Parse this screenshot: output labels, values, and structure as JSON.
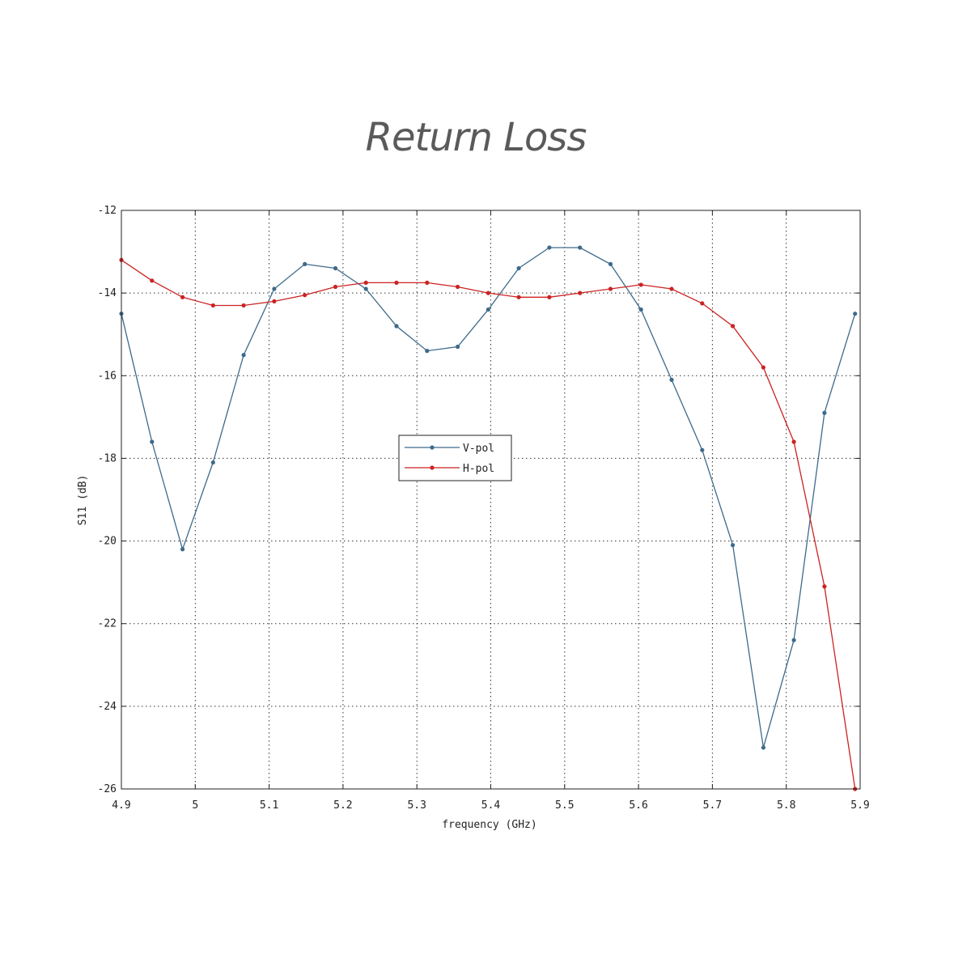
{
  "chart_data": {
    "type": "line",
    "title": "Return Loss",
    "xlabel": "frequency (GHz)",
    "ylabel": "S11 (dB)",
    "xlim": [
      4.9,
      5.9
    ],
    "ylim": [
      -26,
      -12
    ],
    "xticks": [
      4.9,
      5.0,
      5.1,
      5.2,
      5.3,
      5.4,
      5.5,
      5.6,
      5.7,
      5.8,
      5.9
    ],
    "xtick_labels": [
      "4.9",
      "5",
      "5.1",
      "5.2",
      "5.3",
      "5.4",
      "5.5",
      "5.6",
      "5.7",
      "5.8",
      "5.9"
    ],
    "yticks": [
      -12,
      -14,
      -16,
      -18,
      -20,
      -22,
      -24,
      -26
    ],
    "ytick_labels": [
      "-12",
      "-14",
      "-16",
      "-18",
      "-20",
      "-22",
      "-24",
      "-26"
    ],
    "grid": true,
    "legend": "center-left",
    "series": [
      {
        "name": "V-pol",
        "color": "#3d6a8a",
        "x": [
          4.9,
          4.9414,
          4.9828,
          5.0241,
          5.0655,
          5.1069,
          5.1483,
          5.1897,
          5.231,
          5.2724,
          5.3138,
          5.3552,
          5.3966,
          5.4379,
          5.4793,
          5.5207,
          5.5621,
          5.6034,
          5.6448,
          5.6862,
          5.7276,
          5.769,
          5.8103,
          5.8517,
          5.8931
        ],
        "y": [
          -14.5,
          -17.6,
          -20.2,
          -18.1,
          -15.5,
          -13.9,
          -13.3,
          -13.4,
          -13.9,
          -14.8,
          -15.4,
          -15.3,
          -14.4,
          -13.4,
          -12.9,
          -12.9,
          -13.3,
          -14.4,
          -16.1,
          -17.8,
          -20.1,
          -25.0,
          -22.4,
          -16.9,
          -14.5
        ]
      },
      {
        "name": "H-pol",
        "color": "#cc2222",
        "x": [
          4.9,
          4.9414,
          4.9828,
          5.0241,
          5.0655,
          5.1069,
          5.1483,
          5.1897,
          5.231,
          5.2724,
          5.3138,
          5.3552,
          5.3966,
          5.4379,
          5.4793,
          5.5207,
          5.5621,
          5.6034,
          5.6448,
          5.6862,
          5.7276,
          5.769,
          5.8103,
          5.8517,
          5.8931
        ],
        "y": [
          -13.2,
          -13.7,
          -14.1,
          -14.3,
          -14.3,
          -14.2,
          -14.05,
          -13.85,
          -13.75,
          -13.75,
          -13.75,
          -13.85,
          -14.0,
          -14.1,
          -14.1,
          -14.0,
          -13.9,
          -13.8,
          -13.9,
          -14.25,
          -14.8,
          -15.8,
          -17.6,
          -21.1,
          -26.0
        ]
      }
    ]
  }
}
